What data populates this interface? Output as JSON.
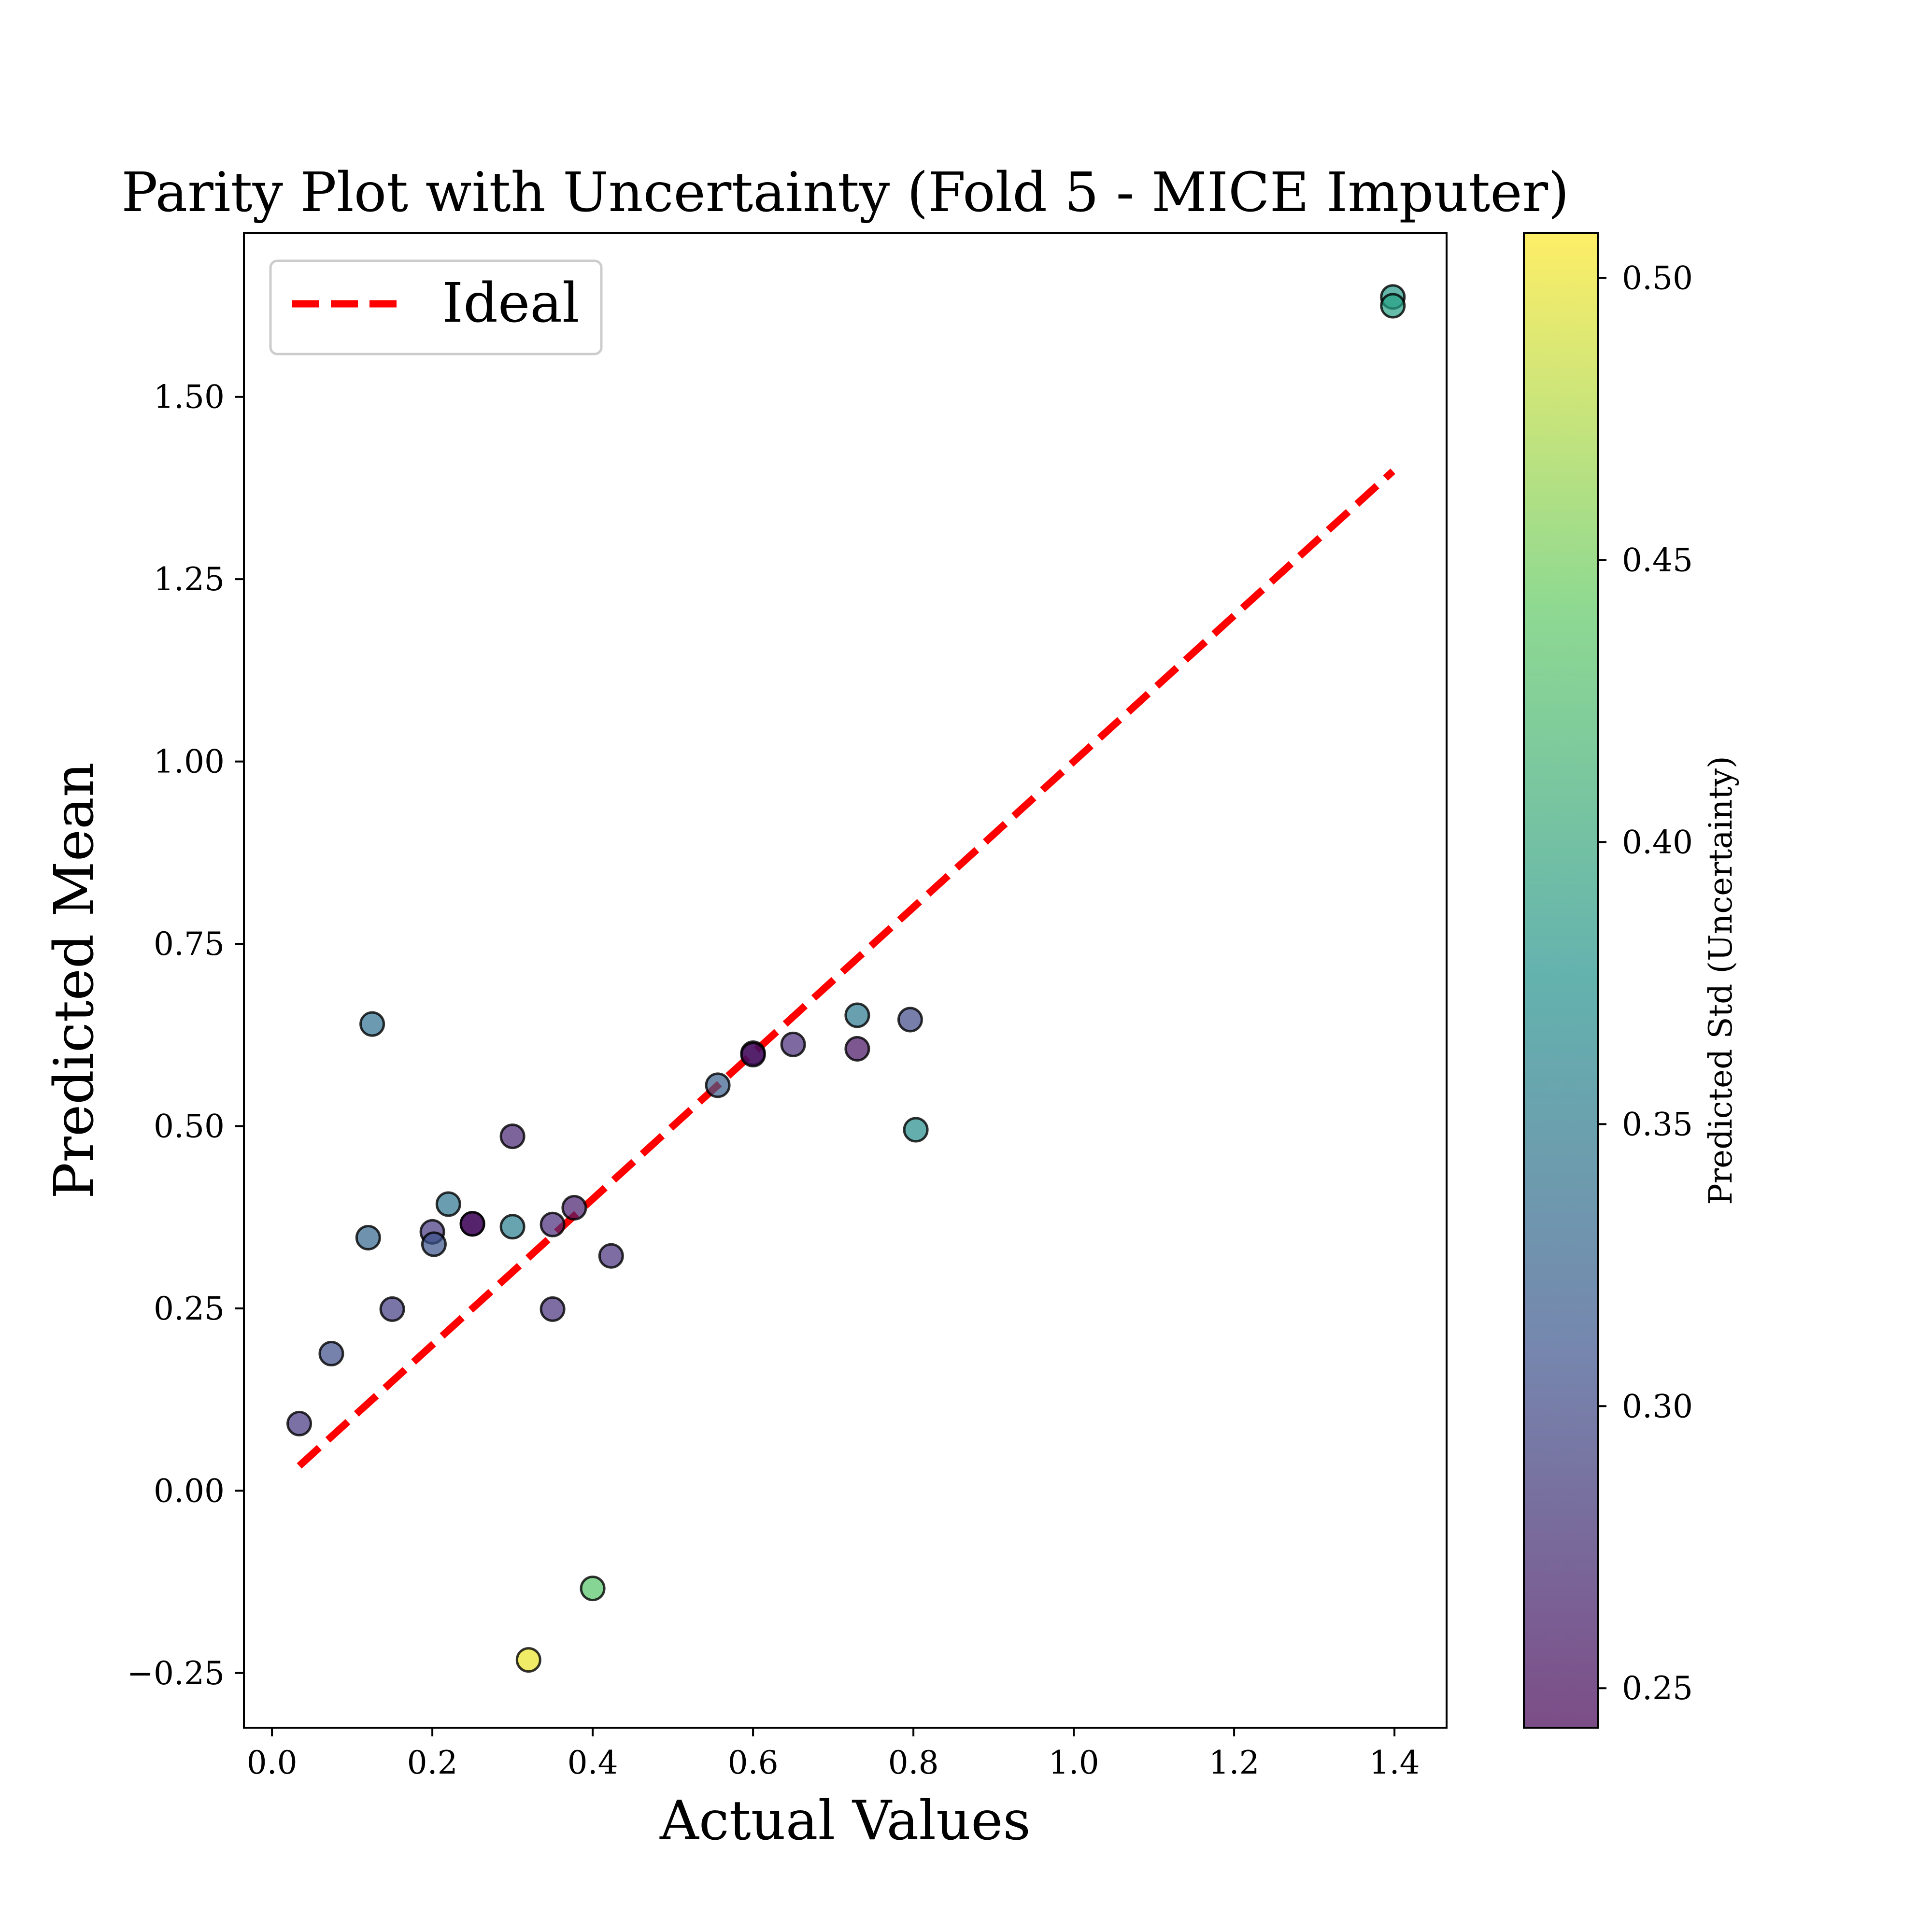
{
  "chart_data": {
    "type": "scatter",
    "title": "Parity Plot with Uncertainty (Fold 5 - MICE Imputer)",
    "xlabel": "Actual Values",
    "ylabel": "Predicted Mean",
    "xlim": [
      -0.035,
      1.465
    ],
    "ylim": [
      -0.325,
      1.725
    ],
    "xticks": [
      0.0,
      0.2,
      0.4,
      0.6,
      0.8,
      1.0,
      1.2,
      1.4
    ],
    "xtick_labels": [
      "0.0",
      "0.2",
      "0.4",
      "0.6",
      "0.8",
      "1.0",
      "1.2",
      "1.4"
    ],
    "yticks": [
      -0.25,
      0.0,
      0.25,
      0.5,
      0.75,
      1.0,
      1.25,
      1.5
    ],
    "ytick_labels": [
      "−0.25",
      "0.00",
      "0.25",
      "0.50",
      "0.75",
      "1.00",
      "1.25",
      "1.50"
    ],
    "grid": false,
    "legend": {
      "location": "upper-left",
      "entries": [
        {
          "label": "Ideal",
          "color": "#ff0000",
          "style": "dashed"
        }
      ]
    },
    "ideal_line": {
      "x": [
        0.034,
        1.398
      ],
      "y": [
        0.034,
        1.398
      ],
      "color": "#ff0000"
    },
    "colorbar": {
      "label": "Predicted Std (Uncertainty)",
      "colormap": "viridis",
      "range": [
        0.243,
        0.508
      ],
      "ticks": [
        0.25,
        0.3,
        0.35,
        0.4,
        0.45,
        0.5
      ],
      "tick_labels": [
        "0.25",
        "0.30",
        "0.35",
        "0.40",
        "0.45",
        "0.50"
      ]
    },
    "points": [
      {
        "x": 0.034,
        "y": 0.092,
        "std": 0.285
      },
      {
        "x": 0.074,
        "y": 0.188,
        "std": 0.305
      },
      {
        "x": 0.12,
        "y": 0.347,
        "std": 0.33
      },
      {
        "x": 0.125,
        "y": 0.64,
        "std": 0.34
      },
      {
        "x": 0.15,
        "y": 0.249,
        "std": 0.29
      },
      {
        "x": 0.2,
        "y": 0.355,
        "std": 0.285
      },
      {
        "x": 0.202,
        "y": 0.338,
        "std": 0.31
      },
      {
        "x": 0.22,
        "y": 0.393,
        "std": 0.345
      },
      {
        "x": 0.25,
        "y": 0.366,
        "std": 0.245
      },
      {
        "x": 0.25,
        "y": 0.366,
        "std": 0.255
      },
      {
        "x": 0.3,
        "y": 0.486,
        "std": 0.27
      },
      {
        "x": 0.3,
        "y": 0.362,
        "std": 0.355
      },
      {
        "x": 0.32,
        "y": -0.232,
        "std": 0.5
      },
      {
        "x": 0.35,
        "y": 0.365,
        "std": 0.275
      },
      {
        "x": 0.35,
        "y": 0.249,
        "std": 0.28
      },
      {
        "x": 0.377,
        "y": 0.388,
        "std": 0.265
      },
      {
        "x": 0.4,
        "y": -0.134,
        "std": 0.435
      },
      {
        "x": 0.423,
        "y": 0.322,
        "std": 0.28
      },
      {
        "x": 0.556,
        "y": 0.556,
        "std": 0.32
      },
      {
        "x": 0.6,
        "y": 0.6,
        "std": 0.245
      },
      {
        "x": 0.6,
        "y": 0.598,
        "std": 0.255
      },
      {
        "x": 0.65,
        "y": 0.612,
        "std": 0.275
      },
      {
        "x": 0.73,
        "y": 0.652,
        "std": 0.35
      },
      {
        "x": 0.73,
        "y": 0.606,
        "std": 0.255
      },
      {
        "x": 0.796,
        "y": 0.646,
        "std": 0.3
      },
      {
        "x": 0.803,
        "y": 0.495,
        "std": 0.37
      },
      {
        "x": 1.398,
        "y": 1.637,
        "std": 0.385
      },
      {
        "x": 1.398,
        "y": 1.625,
        "std": 0.395
      }
    ]
  }
}
